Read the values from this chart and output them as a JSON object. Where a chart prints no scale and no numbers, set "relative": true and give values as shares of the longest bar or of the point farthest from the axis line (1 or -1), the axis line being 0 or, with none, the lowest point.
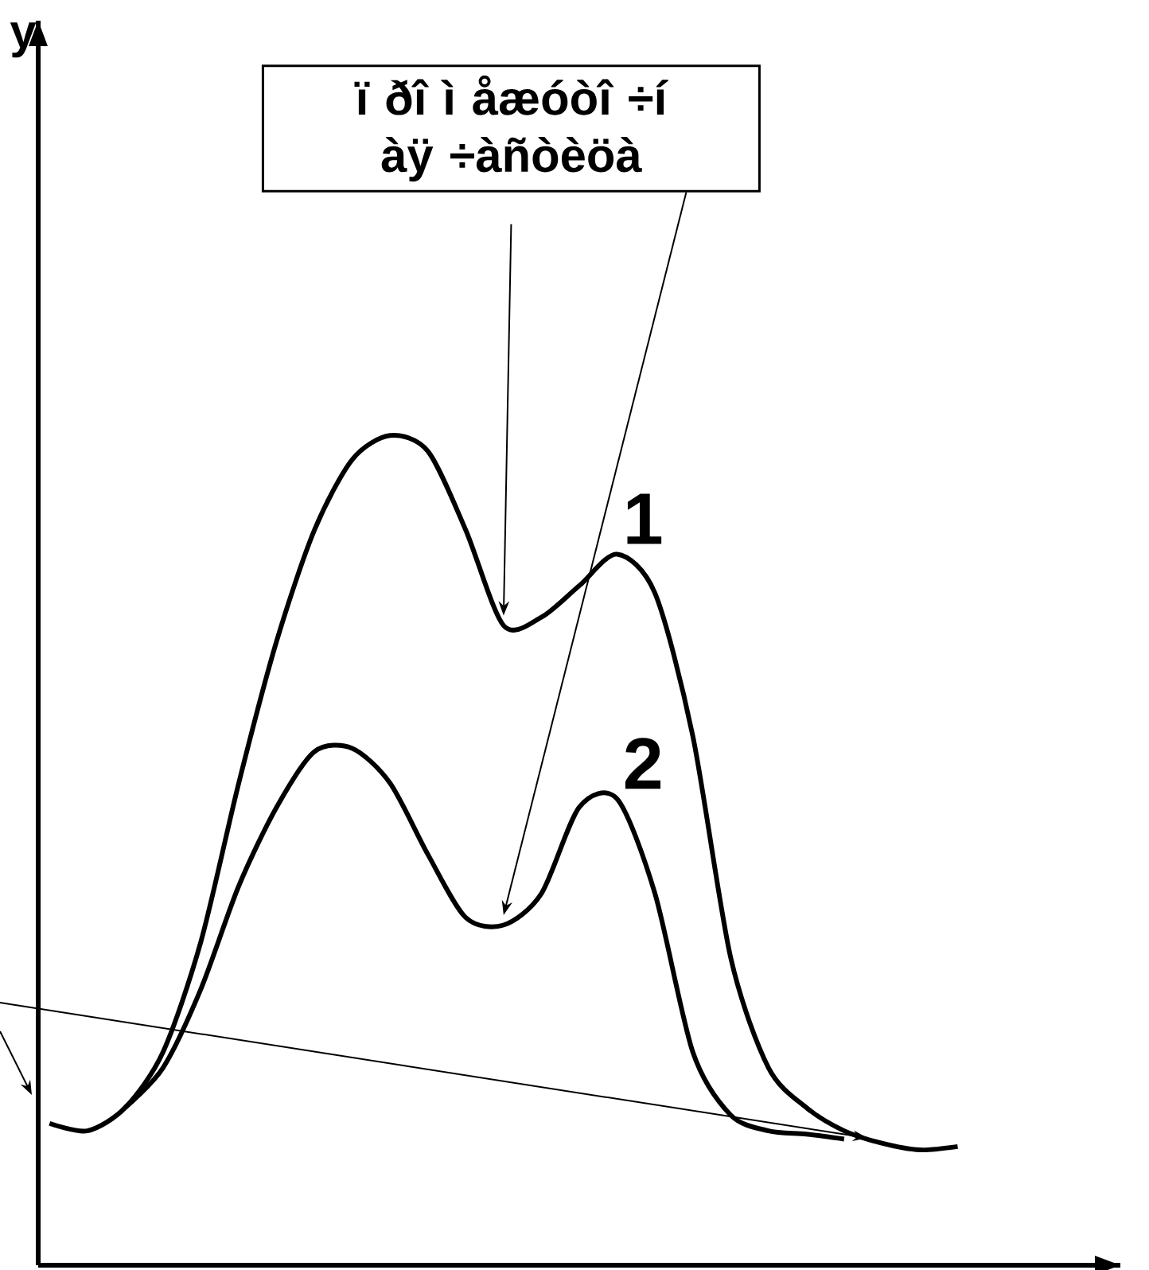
{
  "chart_data": {
    "type": "line",
    "relative": true,
    "line_style": "solid",
    "categories": [
      null,
      null,
      null,
      null,
      null,
      null,
      null,
      null,
      null,
      null,
      null,
      null,
      null,
      null,
      null,
      null,
      null,
      null,
      null,
      null,
      null,
      null,
      null,
      null,
      null
    ],
    "series": [
      {
        "name": "1",
        "color": "#000000",
        "values": [
          0.171,
          0.162,
          0.19,
          0.257,
          0.39,
          0.581,
          0.752,
          0.886,
          0.971,
          1,
          0.981,
          0.886,
          0.771,
          0.781,
          0.819,
          0.857,
          0.81,
          0.638,
          0.371,
          0.238,
          0.19,
          0.162,
          0.147,
          0.139,
          0.143
        ]
      },
      {
        "name": "2",
        "color": "#000000",
        "values": [
          null,
          null,
          0.19,
          0.238,
          0.333,
          0.457,
          0.552,
          0.619,
          0.623,
          0.581,
          0.495,
          0.419,
          0.41,
          0.448,
          0.552,
          0.562,
          0.448,
          0.257,
          0.181,
          0.162,
          0.158,
          0.152,
          null,
          null,
          null
        ]
      }
    ],
    "annotations": [
      "ï ðî ì åæóòî ÷í àÿ ÷àñòèöà",
      "y"
    ]
  }
}
